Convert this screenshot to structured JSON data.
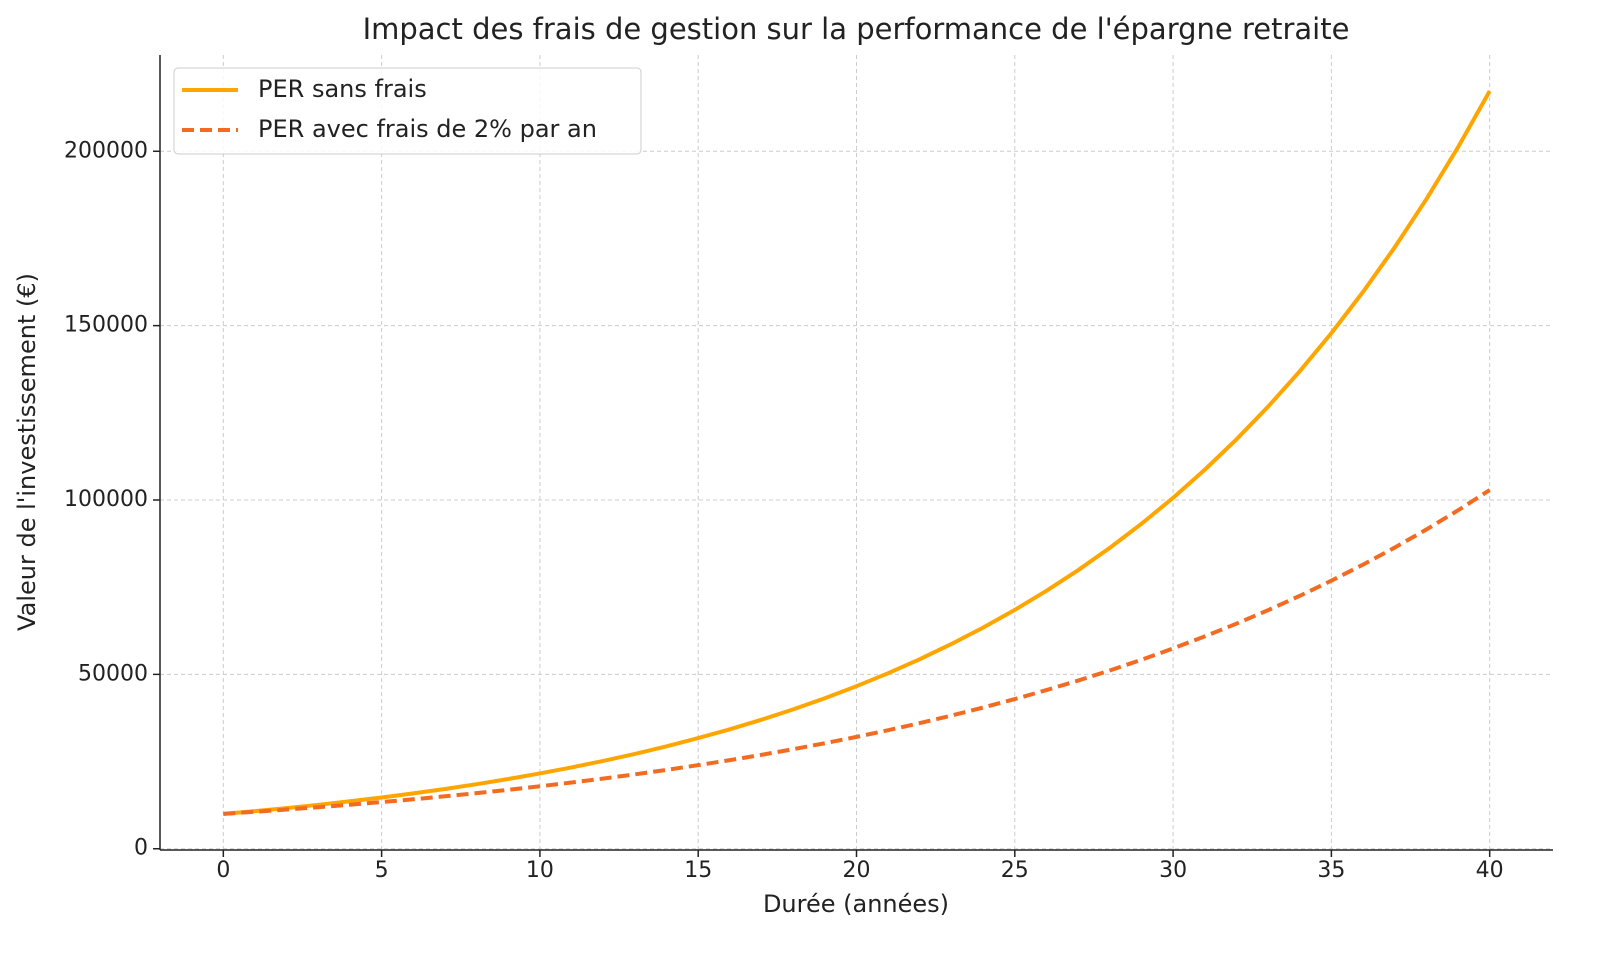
{
  "chart_data": {
    "type": "line",
    "title": "Impact des frais de gestion sur la performance de l'épargne retraite",
    "x_label": "Durée (années)",
    "y_label": "Valeur de l'investissement (€)",
    "x": [
      0,
      1,
      2,
      3,
      4,
      5,
      6,
      7,
      8,
      9,
      10,
      11,
      12,
      13,
      14,
      15,
      16,
      17,
      18,
      19,
      20,
      21,
      22,
      23,
      24,
      25,
      26,
      27,
      28,
      29,
      30,
      31,
      32,
      33,
      34,
      35,
      36,
      37,
      38,
      39,
      40
    ],
    "series": [
      {
        "name": "PER sans frais",
        "color": "#FFA500",
        "dash": false,
        "values": [
          10000,
          10800,
          11664,
          12597,
          13605,
          14693,
          15869,
          17138,
          18509,
          19990,
          21589,
          23316,
          25182,
          27196,
          29372,
          31722,
          34259,
          37000,
          39960,
          43157,
          46610,
          50338,
          54365,
          58715,
          63412,
          68485,
          73964,
          79881,
          86271,
          93173,
          100627,
          108677,
          117371,
          126760,
          136901,
          147853,
          159682,
          172456,
          186253,
          201153,
          217245
        ]
      },
      {
        "name": "PER avec frais de 2% par an",
        "color": "#F26B21",
        "dash": true,
        "values": [
          10000,
          10600,
          11236,
          11910,
          12625,
          13382,
          14185,
          15036,
          15938,
          16895,
          17908,
          18983,
          20122,
          21329,
          22609,
          23966,
          25404,
          26928,
          28543,
          30256,
          32071,
          33996,
          36035,
          38197,
          40489,
          42919,
          45494,
          48223,
          51117,
          54184,
          57435,
          60881,
          64534,
          68406,
          72510,
          76861,
          81473,
          86361,
          91543,
          97035,
          102857
        ]
      }
    ],
    "xlim": [
      -2,
      42
    ],
    "xticks": [
      0,
      5,
      10,
      15,
      20,
      25,
      30,
      35,
      40
    ],
    "ylim": [
      -362,
      227607
    ],
    "yticks": [
      0,
      50000,
      100000,
      150000,
      200000
    ],
    "grid": true,
    "legend": "upper-left"
  }
}
